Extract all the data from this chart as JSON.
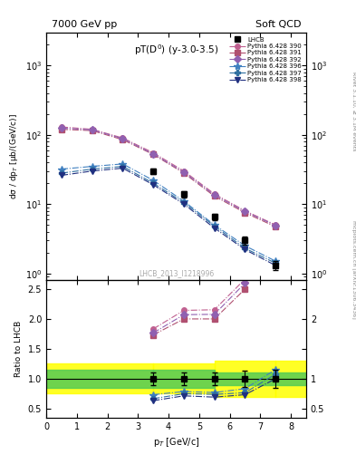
{
  "title_top": "7000 GeV pp",
  "title_right": "Soft QCD",
  "plot_title": "pT(D$^0$) (y-3.0-3.5)",
  "ylabel_main": "dσ / dp$_T$ [μb/(GeV/c)]",
  "ylabel_ratio": "Ratio to LHCB",
  "xlabel": "p$_T$ [GeV/c]",
  "right_label_top": "Rivet 3.1.10, ≥ 3.1M events",
  "right_label_bottom": "mcplots.cern.ch [arXiv:1306.3436]",
  "watermark": "LHCB_2013_I1218996",
  "lhcb_pt": [
    3.5,
    4.5,
    5.5,
    6.5,
    7.5
  ],
  "lhcb_y": [
    30.0,
    14.0,
    6.5,
    3.0,
    1.3
  ],
  "lhcb_yerr": [
    3.0,
    1.5,
    0.7,
    0.4,
    0.2
  ],
  "series": [
    {
      "label": "Pythia 6.428 390",
      "color": "#c06090",
      "marker": "o",
      "pt": [
        0.5,
        1.5,
        2.5,
        3.5,
        4.5,
        5.5,
        6.5,
        7.5
      ],
      "y": [
        130,
        120,
        90,
        55,
        30,
        14,
        8.0,
        5.0
      ]
    },
    {
      "label": "Pythia 6.428 391",
      "color": "#b05070",
      "marker": "s",
      "pt": [
        0.5,
        1.5,
        2.5,
        3.5,
        4.5,
        5.5,
        6.5,
        7.5
      ],
      "y": [
        120,
        115,
        85,
        52,
        28,
        13,
        7.5,
        4.7
      ]
    },
    {
      "label": "Pythia 6.428 392",
      "color": "#9060b0",
      "marker": "D",
      "pt": [
        0.5,
        1.5,
        2.5,
        3.5,
        4.5,
        5.5,
        6.5,
        7.5
      ],
      "y": [
        125,
        118,
        88,
        53,
        29,
        13.5,
        7.8,
        4.9
      ]
    },
    {
      "label": "Pythia 6.428 396",
      "color": "#4080c0",
      "marker": "*",
      "pt": [
        0.5,
        1.5,
        2.5,
        3.5,
        4.5,
        5.5,
        6.5,
        7.5
      ],
      "y": [
        32,
        35,
        38,
        22,
        11,
        5.0,
        2.5,
        1.5
      ]
    },
    {
      "label": "Pythia 6.428 397",
      "color": "#3070a0",
      "marker": "P",
      "pt": [
        0.5,
        1.5,
        2.5,
        3.5,
        4.5,
        5.5,
        6.5,
        7.5
      ],
      "y": [
        28,
        32,
        35,
        20,
        10.5,
        4.8,
        2.3,
        1.4
      ]
    },
    {
      "label": "Pythia 6.428 398",
      "color": "#203080",
      "marker": "v",
      "pt": [
        0.5,
        1.5,
        2.5,
        3.5,
        4.5,
        5.5,
        6.5,
        7.5
      ],
      "y": [
        26,
        30,
        33,
        19,
        10.0,
        4.5,
        2.2,
        1.3
      ]
    }
  ],
  "band_edges": [
    0.0,
    3.5,
    5.5,
    7.5,
    8.5
  ],
  "green_band": [
    0.15,
    0.15,
    0.1,
    0.1
  ],
  "yellow_band": [
    0.25,
    0.25,
    0.3,
    0.3
  ]
}
